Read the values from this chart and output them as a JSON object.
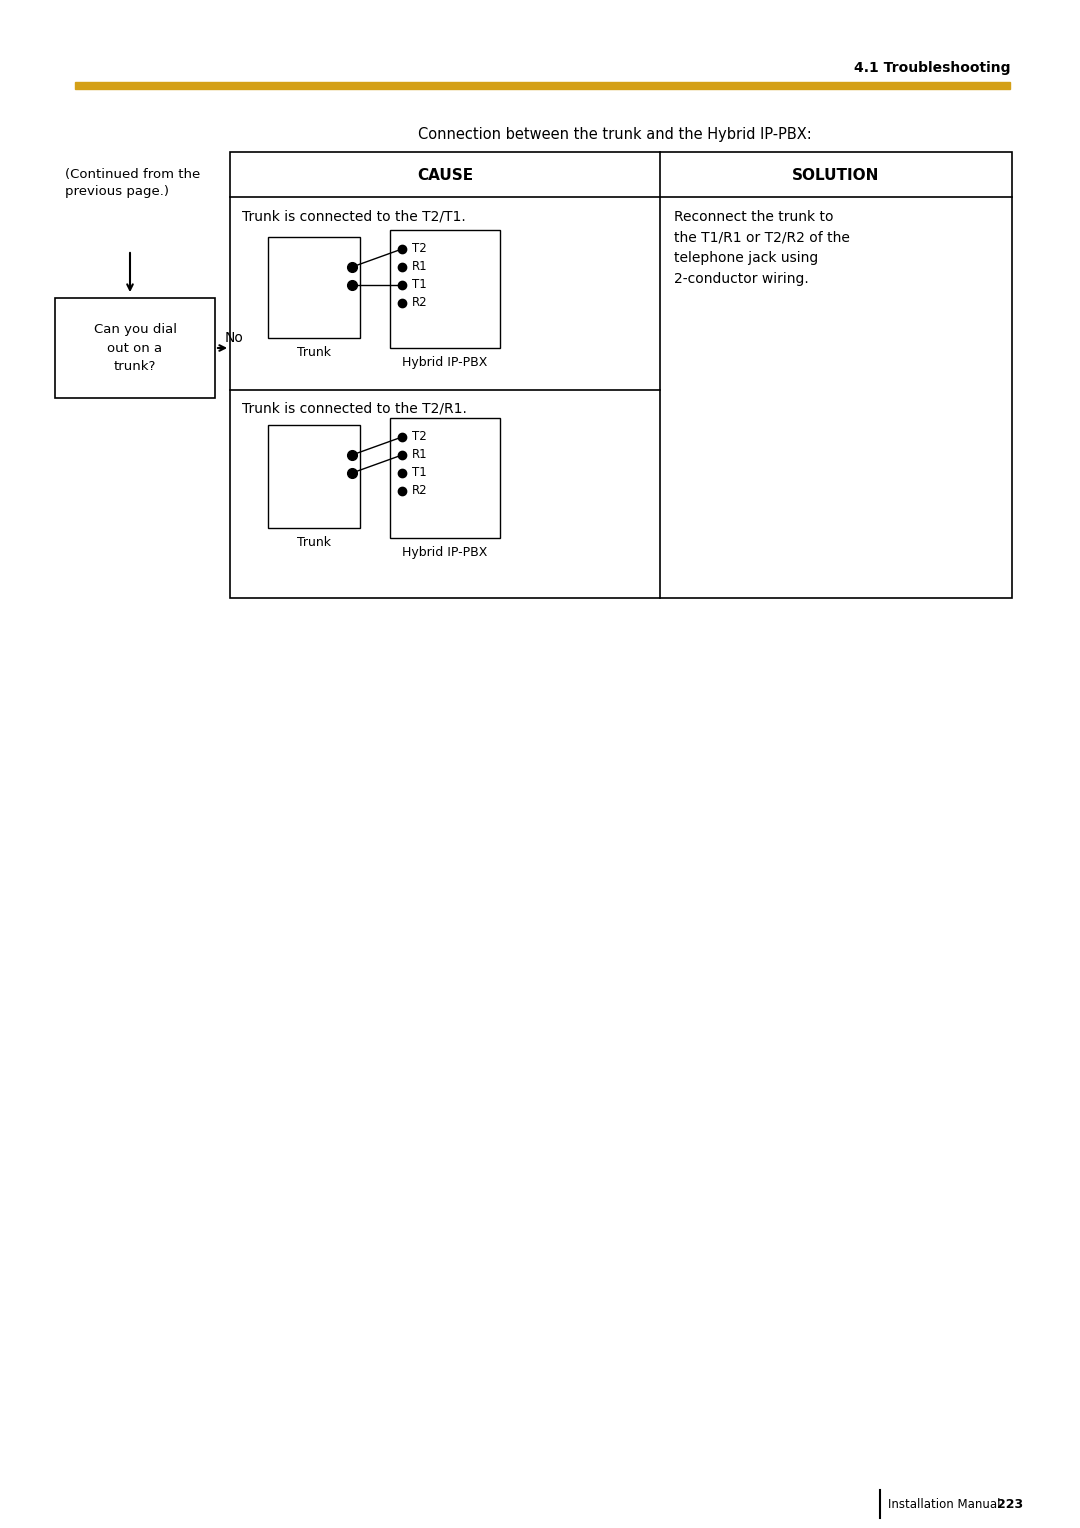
{
  "page_header": "4.1 Troubleshooting",
  "header_line_color": "#D4A017",
  "connection_title": "Connection between the trunk and the Hybrid IP-PBX:",
  "cause_header": "CAUSE",
  "solution_header": "SOLUTION",
  "cause1_text": "Trunk is connected to the T2/T1.",
  "cause2_text": "Trunk is connected to the T2/R1.",
  "solution_text": "Reconnect the trunk to\nthe T1/R1 or T2/R2 of the\ntelephone jack using\n2-conductor wiring.",
  "trunk_label": "Trunk",
  "hybrid_label": "Hybrid IP-PBX",
  "pins": [
    "T2",
    "R1",
    "T1",
    "R2"
  ],
  "continued_text": "(Continued from the\nprevious page.)",
  "flowbox_text": "Can you dial\nout on a\ntrunk?",
  "no_label": "No",
  "footer_text": "Installation Manual",
  "footer_page": "223",
  "bg_color": "#ffffff",
  "text_color": "#000000",
  "table_border_color": "#000000"
}
